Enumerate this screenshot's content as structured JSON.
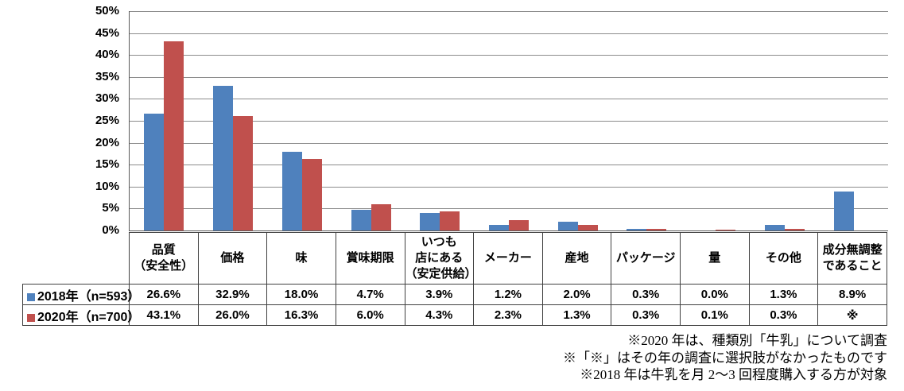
{
  "chart_data": {
    "type": "bar",
    "categories": [
      "品質（安全性）",
      "価格",
      "味",
      "賞味期限",
      "いつも店にある（安定供給）",
      "メーカー",
      "産地",
      "パッケージ",
      "量",
      "その他",
      "成分無調整であること"
    ],
    "series": [
      {
        "name": "2018年（n=593）",
        "color": "#4F81BD",
        "values": [
          26.6,
          32.9,
          18.0,
          4.7,
          3.9,
          1.2,
          2.0,
          0.3,
          0.0,
          1.3,
          8.9
        ]
      },
      {
        "name": "2020年（n=700）",
        "color": "#C0504D",
        "values": [
          43.1,
          26.0,
          16.3,
          6.0,
          4.3,
          2.3,
          1.3,
          0.3,
          0.1,
          0.3,
          null
        ]
      }
    ],
    "title": "",
    "xlabel": "",
    "ylabel": "",
    "ylim": [
      0,
      50
    ],
    "ytick_step": 5,
    "ytick_labels": [
      "0%",
      "5%",
      "10%",
      "15%",
      "20%",
      "25%",
      "30%",
      "35%",
      "40%",
      "45%",
      "50%"
    ],
    "grid": true,
    "legend_position": "table-left-column",
    "missing_marker": "※"
  },
  "table": {
    "header_labels": [
      "品質\n（安全性）",
      "価格",
      "味",
      "賞味期限",
      "いつも\n店にある\n（安定供給）",
      "メーカー",
      "産地",
      "パッケージ",
      "量",
      "その他",
      "成分無調整\nであること"
    ]
  },
  "footnotes": [
    "※2020 年は、種類別「牛乳」について調査",
    "※「※」はその年の調査に選択肢がなかったものです",
    "※2018 年は牛乳を月 2～3 回程度購入する方が対象"
  ],
  "colors": {
    "series_2018": "#4F81BD",
    "series_2020": "#C0504D",
    "gridline": "#8C8C8C",
    "axis": "#595959",
    "table_border": "#404040"
  }
}
